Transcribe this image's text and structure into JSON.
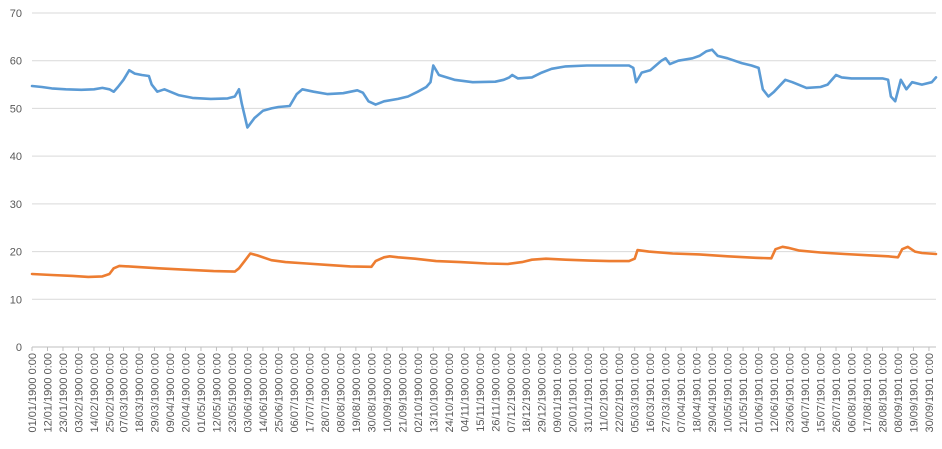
{
  "chart_data": {
    "type": "line",
    "title": "",
    "xlabel": "",
    "ylabel": "",
    "ylim": [
      0,
      70
    ],
    "yticks": [
      0,
      10,
      20,
      30,
      40,
      50,
      60,
      70
    ],
    "grid": "horizontal",
    "legend": "none",
    "x_ticks": [
      "01/01/1900 0:00",
      "12/01/1900 0:00",
      "23/01/1900 0:00",
      "03/02/1900 0:00",
      "14/02/1900 0:00",
      "25/02/1900 0:00",
      "07/03/1900 0:00",
      "18/03/1900 0:00",
      "29/03/1900 0:00",
      "09/04/1900 0:00",
      "20/04/1900 0:00",
      "01/05/1900 0:00",
      "12/05/1900 0:00",
      "23/05/1900 0:00",
      "03/06/1900 0:00",
      "14/06/1900 0:00",
      "25/06/1900 0:00",
      "06/07/1900 0:00",
      "17/07/1900 0:00",
      "28/07/1900 0:00",
      "08/08/1900 0:00",
      "19/08/1900 0:00",
      "30/08/1900 0:00",
      "10/09/1900 0:00",
      "21/09/1900 0:00",
      "02/10/1900 0:00",
      "13/10/1900 0:00",
      "24/10/1900 0:00",
      "04/11/1900 0:00",
      "15/11/1900 0:00",
      "26/11/1900 0:00",
      "07/12/1900 0:00",
      "18/12/1900 0:00",
      "29/12/1900 0:00",
      "09/01/1901 0:00",
      "20/01/1901 0:00",
      "31/01/1901 0:00",
      "11/02/1901 0:00",
      "22/02/1901 0:00",
      "05/03/1901 0:00",
      "16/03/1901 0:00",
      "27/03/1901 0:00",
      "07/04/1901 0:00",
      "18/04/1901 0:00",
      "29/04/1901 0:00",
      "10/05/1901 0:00",
      "21/05/1901 0:00",
      "01/06/1901 0:00",
      "12/06/1901 0:00",
      "23/06/1901 0:00",
      "04/07/1901 0:00",
      "15/07/1901 0:00",
      "26/07/1901 0:00",
      "06/08/1901 0:00",
      "17/08/1901 0:00",
      "28/08/1901 0:00",
      "08/09/1901 0:00",
      "19/09/1901 0:00",
      "30/09/1901 0:00"
    ],
    "x_range": [
      "01/01/1900",
      "05/10/1901"
    ],
    "series": [
      {
        "name": "",
        "color": "#5B9BD5",
        "points": [
          [
            "01/01/1900",
            54.7
          ],
          [
            "08/01/1900",
            54.5
          ],
          [
            "15/01/1900",
            54.2
          ],
          [
            "25/01/1900",
            54.0
          ],
          [
            "05/02/1900",
            53.9
          ],
          [
            "14/02/1900",
            54.0
          ],
          [
            "20/02/1900",
            54.3
          ],
          [
            "25/02/1900",
            54.0
          ],
          [
            "28/02/1900",
            53.5
          ],
          [
            "03/03/1900",
            54.5
          ],
          [
            "07/03/1900",
            56.0
          ],
          [
            "11/03/1900",
            58.0
          ],
          [
            "15/03/1900",
            57.3
          ],
          [
            "20/03/1900",
            57.0
          ],
          [
            "25/03/1900",
            56.8
          ],
          [
            "27/03/1900",
            55.0
          ],
          [
            "31/03/1900",
            53.5
          ],
          [
            "05/04/1900",
            54.0
          ],
          [
            "15/04/1900",
            52.8
          ],
          [
            "25/04/1900",
            52.2
          ],
          [
            "08/05/1900",
            52.0
          ],
          [
            "20/05/1900",
            52.1
          ],
          [
            "25/05/1900",
            52.5
          ],
          [
            "28/05/1900",
            54.0
          ],
          [
            "30/05/1900",
            51.0
          ],
          [
            "03/06/1900",
            46.0
          ],
          [
            "08/06/1900",
            48.0
          ],
          [
            "14/06/1900",
            49.5
          ],
          [
            "20/06/1900",
            50.0
          ],
          [
            "25/06/1900",
            50.3
          ],
          [
            "03/07/1900",
            50.5
          ],
          [
            "08/07/1900",
            53.0
          ],
          [
            "12/07/1900",
            54.0
          ],
          [
            "20/07/1900",
            53.5
          ],
          [
            "30/07/1900",
            53.0
          ],
          [
            "10/08/1900",
            53.2
          ],
          [
            "20/08/1900",
            53.8
          ],
          [
            "24/08/1900",
            53.3
          ],
          [
            "28/08/1900",
            51.5
          ],
          [
            "02/09/1900",
            50.8
          ],
          [
            "08/09/1900",
            51.5
          ],
          [
            "18/09/1900",
            52.0
          ],
          [
            "25/09/1900",
            52.5
          ],
          [
            "02/10/1900",
            53.5
          ],
          [
            "08/10/1900",
            54.5
          ],
          [
            "11/10/1900",
            55.5
          ],
          [
            "13/10/1900",
            59.0
          ],
          [
            "17/10/1900",
            57.0
          ],
          [
            "28/10/1900",
            56.0
          ],
          [
            "10/11/1900",
            55.5
          ],
          [
            "26/11/1900",
            55.6
          ],
          [
            "02/12/1900",
            56.0
          ],
          [
            "06/12/1900",
            56.5
          ],
          [
            "08/12/1900",
            57.0
          ],
          [
            "12/12/1900",
            56.3
          ],
          [
            "22/12/1900",
            56.5
          ],
          [
            "29/12/1900",
            57.5
          ],
          [
            "05/01/1901",
            58.3
          ],
          [
            "15/01/1901",
            58.8
          ],
          [
            "30/01/1901",
            59.0
          ],
          [
            "15/02/1901",
            59.0
          ],
          [
            "01/03/1901",
            59.0
          ],
          [
            "04/03/1901",
            58.5
          ],
          [
            "06/03/1901",
            55.5
          ],
          [
            "10/03/1901",
            57.5
          ],
          [
            "16/03/1901",
            58.0
          ],
          [
            "20/03/1901",
            59.0
          ],
          [
            "24/03/1901",
            60.0
          ],
          [
            "27/03/1901",
            60.5
          ],
          [
            "30/03/1901",
            59.3
          ],
          [
            "05/04/1901",
            60.0
          ],
          [
            "15/04/1901",
            60.5
          ],
          [
            "20/04/1901",
            61.0
          ],
          [
            "25/04/1901",
            62.0
          ],
          [
            "29/04/1901",
            62.3
          ],
          [
            "03/05/1901",
            61.0
          ],
          [
            "10/05/1901",
            60.5
          ],
          [
            "20/05/1901",
            59.5
          ],
          [
            "27/05/1901",
            59.0
          ],
          [
            "01/06/1901",
            58.5
          ],
          [
            "04/06/1901",
            54.0
          ],
          [
            "08/06/1901",
            52.5
          ],
          [
            "12/06/1901",
            53.5
          ],
          [
            "20/06/1901",
            56.0
          ],
          [
            "25/06/1901",
            55.5
          ],
          [
            "05/07/1901",
            54.3
          ],
          [
            "15/07/1901",
            54.5
          ],
          [
            "20/07/1901",
            55.0
          ],
          [
            "26/07/1901",
            57.0
          ],
          [
            "30/07/1901",
            56.5
          ],
          [
            "06/08/1901",
            56.3
          ],
          [
            "17/08/1901",
            56.3
          ],
          [
            "28/08/1901",
            56.3
          ],
          [
            "01/09/1901",
            56.0
          ],
          [
            "03/09/1901",
            52.5
          ],
          [
            "06/09/1901",
            51.5
          ],
          [
            "10/09/1901",
            56.0
          ],
          [
            "14/09/1901",
            54.0
          ],
          [
            "18/09/1901",
            55.5
          ],
          [
            "25/09/1901",
            55.0
          ],
          [
            "02/10/1901",
            55.5
          ],
          [
            "05/10/1901",
            56.5
          ]
        ]
      },
      {
        "name": "",
        "color": "#ED7D31",
        "points": [
          [
            "01/01/1900",
            15.3
          ],
          [
            "15/01/1900",
            15.1
          ],
          [
            "30/01/1900",
            14.9
          ],
          [
            "10/02/1900",
            14.7
          ],
          [
            "20/02/1900",
            14.8
          ],
          [
            "25/02/1900",
            15.3
          ],
          [
            "28/02/1900",
            16.5
          ],
          [
            "04/03/1900",
            17.0
          ],
          [
            "15/03/1900",
            16.8
          ],
          [
            "01/04/1900",
            16.5
          ],
          [
            "20/04/1900",
            16.2
          ],
          [
            "10/05/1900",
            15.9
          ],
          [
            "25/05/1900",
            15.8
          ],
          [
            "28/05/1900",
            16.5
          ],
          [
            "01/06/1900",
            18.0
          ],
          [
            "05/06/1900",
            19.6
          ],
          [
            "10/06/1900",
            19.2
          ],
          [
            "20/06/1900",
            18.2
          ],
          [
            "30/06/1900",
            17.8
          ],
          [
            "15/07/1900",
            17.5
          ],
          [
            "30/07/1900",
            17.2
          ],
          [
            "15/08/1900",
            16.9
          ],
          [
            "30/08/1900",
            16.8
          ],
          [
            "02/09/1900",
            18.0
          ],
          [
            "08/09/1900",
            18.8
          ],
          [
            "12/09/1900",
            19.0
          ],
          [
            "18/09/1900",
            18.8
          ],
          [
            "30/09/1900",
            18.5
          ],
          [
            "15/10/1900",
            18.0
          ],
          [
            "01/11/1900",
            17.8
          ],
          [
            "20/11/1900",
            17.5
          ],
          [
            "05/12/1900",
            17.4
          ],
          [
            "15/12/1900",
            17.8
          ],
          [
            "22/12/1900",
            18.3
          ],
          [
            "01/01/1901",
            18.5
          ],
          [
            "15/01/1901",
            18.3
          ],
          [
            "01/02/1901",
            18.1
          ],
          [
            "15/02/1901",
            18.0
          ],
          [
            "01/03/1901",
            18.0
          ],
          [
            "05/03/1901",
            18.5
          ],
          [
            "07/03/1901",
            20.3
          ],
          [
            "15/03/1901",
            20.0
          ],
          [
            "01/04/1901",
            19.6
          ],
          [
            "20/04/1901",
            19.4
          ],
          [
            "10/05/1901",
            19.0
          ],
          [
            "30/05/1901",
            18.7
          ],
          [
            "10/06/1901",
            18.6
          ],
          [
            "13/06/1901",
            20.5
          ],
          [
            "18/06/1901",
            21.0
          ],
          [
            "22/06/1901",
            20.8
          ],
          [
            "30/06/1901",
            20.2
          ],
          [
            "15/07/1901",
            19.8
          ],
          [
            "01/08/1901",
            19.5
          ],
          [
            "20/08/1901",
            19.2
          ],
          [
            "01/09/1901",
            19.0
          ],
          [
            "08/09/1901",
            18.8
          ],
          [
            "11/09/1901",
            20.5
          ],
          [
            "15/09/1901",
            21.0
          ],
          [
            "20/09/1901",
            20.0
          ],
          [
            "25/09/1901",
            19.7
          ],
          [
            "05/10/1901",
            19.5
          ]
        ]
      }
    ]
  }
}
